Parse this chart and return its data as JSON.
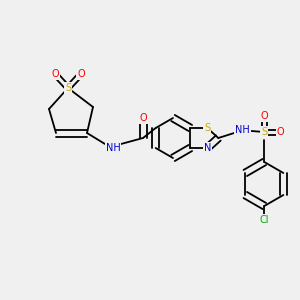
{
  "bg_color": "#f0f0f0",
  "atom_colors": {
    "C": "#000000",
    "N": "#0000cc",
    "O": "#ff0000",
    "S": "#ccaa00",
    "Cl": "#00aa00",
    "H": "#0000cc"
  },
  "bond_color": "#000000",
  "font_size": 7.0,
  "lw": 1.3
}
